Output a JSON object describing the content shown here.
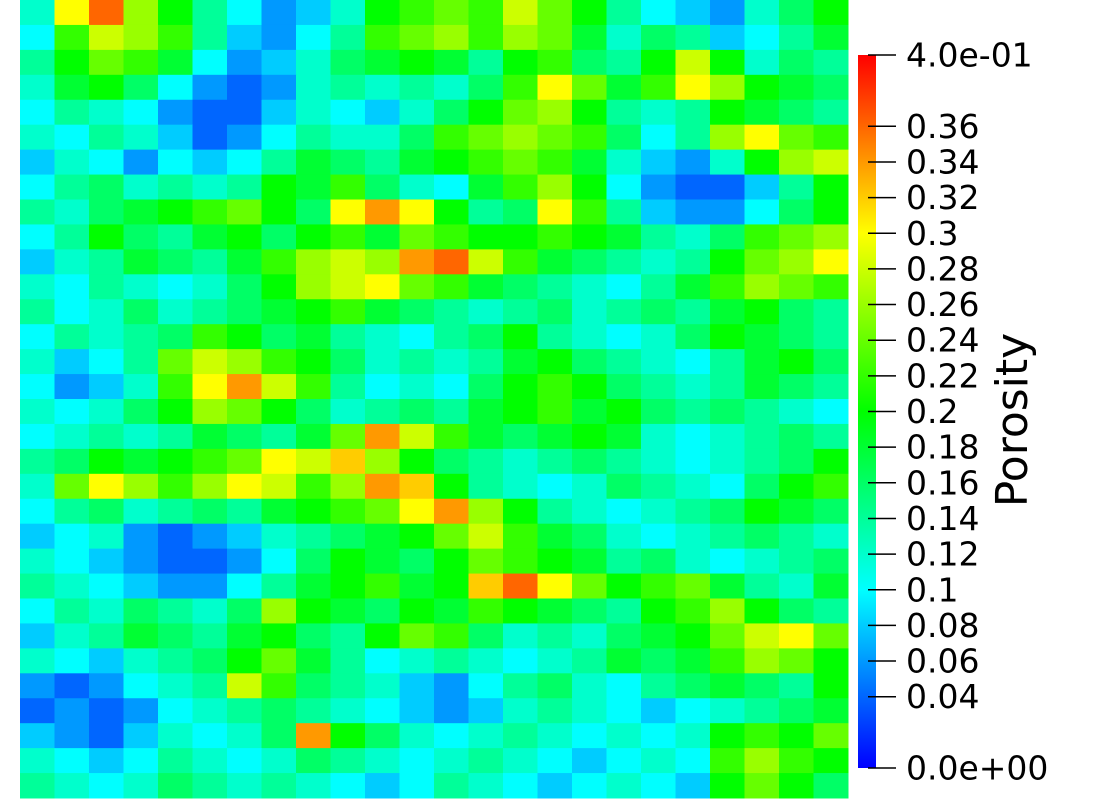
{
  "chart_data": {
    "type": "heatmap",
    "title": "Porosity",
    "zlim": [
      0,
      0.4
    ],
    "zticks": [
      {
        "value": 0,
        "label": "0.0e+00"
      },
      0.04,
      0.06,
      0.08,
      0.1,
      0.12,
      0.14,
      0.16,
      0.18,
      0.2,
      0.22,
      0.24,
      0.26,
      0.28,
      0.3,
      0.32,
      0.34,
      0.36,
      {
        "value": 0.4,
        "label": "4.0e-01"
      }
    ],
    "colormap": [
      "#0000ff",
      "#00ffff",
      "#00ff00",
      "#ffff00",
      "#ff0000"
    ],
    "values": [
      [
        0.12,
        0.3,
        0.36,
        0.26,
        0.2,
        0.14,
        0.1,
        0.06,
        0.08,
        0.12,
        0.2,
        0.22,
        0.24,
        0.22,
        0.28,
        0.24,
        0.2,
        0.14,
        0.1,
        0.08,
        0.06,
        0.12,
        0.16,
        0.2
      ],
      [
        0.1,
        0.22,
        0.28,
        0.26,
        0.22,
        0.14,
        0.08,
        0.06,
        0.1,
        0.14,
        0.22,
        0.24,
        0.26,
        0.22,
        0.26,
        0.24,
        0.18,
        0.12,
        0.16,
        0.14,
        0.08,
        0.1,
        0.14,
        0.18
      ],
      [
        0.14,
        0.2,
        0.24,
        0.22,
        0.18,
        0.1,
        0.06,
        0.08,
        0.12,
        0.16,
        0.18,
        0.2,
        0.18,
        0.14,
        0.2,
        0.22,
        0.16,
        0.14,
        0.2,
        0.28,
        0.2,
        0.12,
        0.16,
        0.14
      ],
      [
        0.12,
        0.18,
        0.2,
        0.16,
        0.1,
        0.06,
        0.04,
        0.06,
        0.12,
        0.14,
        0.12,
        0.14,
        0.12,
        0.16,
        0.22,
        0.3,
        0.24,
        0.18,
        0.22,
        0.3,
        0.26,
        0.2,
        0.18,
        0.16
      ],
      [
        0.1,
        0.14,
        0.12,
        0.1,
        0.06,
        0.04,
        0.04,
        0.08,
        0.12,
        0.1,
        0.08,
        0.12,
        0.16,
        0.2,
        0.24,
        0.26,
        0.2,
        0.14,
        0.12,
        0.14,
        0.2,
        0.18,
        0.16,
        0.14
      ],
      [
        0.12,
        0.1,
        0.14,
        0.12,
        0.08,
        0.04,
        0.06,
        0.1,
        0.14,
        0.12,
        0.12,
        0.16,
        0.22,
        0.24,
        0.26,
        0.24,
        0.22,
        0.16,
        0.1,
        0.14,
        0.26,
        0.3,
        0.24,
        0.22
      ],
      [
        0.08,
        0.12,
        0.1,
        0.06,
        0.1,
        0.08,
        0.1,
        0.14,
        0.18,
        0.16,
        0.14,
        0.18,
        0.2,
        0.22,
        0.24,
        0.22,
        0.18,
        0.12,
        0.08,
        0.06,
        0.12,
        0.2,
        0.26,
        0.28
      ],
      [
        0.1,
        0.14,
        0.16,
        0.12,
        0.14,
        0.12,
        0.14,
        0.2,
        0.18,
        0.22,
        0.16,
        0.12,
        0.1,
        0.18,
        0.22,
        0.26,
        0.2,
        0.1,
        0.06,
        0.04,
        0.04,
        0.08,
        0.14,
        0.2
      ],
      [
        0.14,
        0.12,
        0.16,
        0.18,
        0.2,
        0.22,
        0.24,
        0.2,
        0.16,
        0.3,
        0.34,
        0.3,
        0.2,
        0.14,
        0.16,
        0.3,
        0.22,
        0.14,
        0.08,
        0.06,
        0.06,
        0.1,
        0.16,
        0.2
      ],
      [
        0.1,
        0.14,
        0.2,
        0.16,
        0.14,
        0.18,
        0.2,
        0.16,
        0.2,
        0.22,
        0.18,
        0.24,
        0.22,
        0.2,
        0.2,
        0.22,
        0.2,
        0.18,
        0.14,
        0.12,
        0.16,
        0.22,
        0.24,
        0.26
      ],
      [
        0.08,
        0.12,
        0.14,
        0.18,
        0.16,
        0.14,
        0.18,
        0.22,
        0.26,
        0.28,
        0.26,
        0.34,
        0.36,
        0.28,
        0.22,
        0.18,
        0.16,
        0.14,
        0.12,
        0.14,
        0.2,
        0.24,
        0.26,
        0.3
      ],
      [
        0.12,
        0.1,
        0.14,
        0.12,
        0.1,
        0.12,
        0.16,
        0.2,
        0.26,
        0.28,
        0.3,
        0.24,
        0.22,
        0.18,
        0.16,
        0.14,
        0.12,
        0.1,
        0.14,
        0.18,
        0.22,
        0.26,
        0.24,
        0.22
      ],
      [
        0.14,
        0.1,
        0.12,
        0.16,
        0.12,
        0.14,
        0.16,
        0.18,
        0.2,
        0.22,
        0.18,
        0.16,
        0.14,
        0.12,
        0.14,
        0.16,
        0.12,
        0.14,
        0.16,
        0.14,
        0.18,
        0.2,
        0.16,
        0.14
      ],
      [
        0.1,
        0.14,
        0.12,
        0.14,
        0.16,
        0.22,
        0.2,
        0.16,
        0.18,
        0.14,
        0.12,
        0.1,
        0.14,
        0.16,
        0.2,
        0.14,
        0.12,
        0.1,
        0.12,
        0.16,
        0.2,
        0.18,
        0.16,
        0.14
      ],
      [
        0.12,
        0.08,
        0.1,
        0.14,
        0.24,
        0.28,
        0.26,
        0.22,
        0.2,
        0.16,
        0.12,
        0.14,
        0.12,
        0.14,
        0.18,
        0.2,
        0.16,
        0.14,
        0.12,
        0.1,
        0.14,
        0.18,
        0.2,
        0.16
      ],
      [
        0.1,
        0.06,
        0.08,
        0.12,
        0.22,
        0.3,
        0.34,
        0.28,
        0.22,
        0.14,
        0.1,
        0.12,
        0.1,
        0.16,
        0.2,
        0.22,
        0.2,
        0.16,
        0.14,
        0.12,
        0.14,
        0.18,
        0.16,
        0.14
      ],
      [
        0.12,
        0.1,
        0.12,
        0.16,
        0.2,
        0.26,
        0.24,
        0.2,
        0.16,
        0.12,
        0.14,
        0.16,
        0.14,
        0.18,
        0.2,
        0.22,
        0.18,
        0.2,
        0.16,
        0.14,
        0.16,
        0.14,
        0.12,
        0.1
      ],
      [
        0.1,
        0.12,
        0.14,
        0.12,
        0.14,
        0.18,
        0.16,
        0.14,
        0.18,
        0.24,
        0.34,
        0.28,
        0.22,
        0.18,
        0.16,
        0.18,
        0.2,
        0.18,
        0.12,
        0.1,
        0.12,
        0.14,
        0.16,
        0.14
      ],
      [
        0.14,
        0.16,
        0.2,
        0.18,
        0.2,
        0.22,
        0.24,
        0.3,
        0.28,
        0.32,
        0.26,
        0.2,
        0.16,
        0.14,
        0.12,
        0.14,
        0.16,
        0.14,
        0.12,
        0.1,
        0.12,
        0.14,
        0.16,
        0.2
      ],
      [
        0.12,
        0.24,
        0.3,
        0.26,
        0.22,
        0.26,
        0.3,
        0.28,
        0.22,
        0.26,
        0.34,
        0.32,
        0.2,
        0.14,
        0.12,
        0.1,
        0.12,
        0.16,
        0.14,
        0.12,
        0.1,
        0.16,
        0.2,
        0.22
      ],
      [
        0.1,
        0.14,
        0.16,
        0.12,
        0.14,
        0.16,
        0.14,
        0.18,
        0.2,
        0.22,
        0.24,
        0.3,
        0.34,
        0.26,
        0.2,
        0.14,
        0.12,
        0.1,
        0.12,
        0.14,
        0.16,
        0.2,
        0.18,
        0.16
      ],
      [
        0.08,
        0.1,
        0.12,
        0.06,
        0.04,
        0.06,
        0.08,
        0.12,
        0.14,
        0.16,
        0.18,
        0.2,
        0.24,
        0.28,
        0.22,
        0.18,
        0.16,
        0.12,
        0.1,
        0.12,
        0.14,
        0.16,
        0.14,
        0.12
      ],
      [
        0.12,
        0.1,
        0.08,
        0.06,
        0.04,
        0.04,
        0.06,
        0.1,
        0.16,
        0.2,
        0.18,
        0.16,
        0.2,
        0.24,
        0.22,
        0.2,
        0.18,
        0.14,
        0.16,
        0.12,
        0.1,
        0.12,
        0.14,
        0.16
      ],
      [
        0.14,
        0.12,
        0.1,
        0.08,
        0.06,
        0.06,
        0.1,
        0.14,
        0.18,
        0.2,
        0.22,
        0.18,
        0.2,
        0.32,
        0.36,
        0.3,
        0.24,
        0.2,
        0.22,
        0.24,
        0.18,
        0.14,
        0.12,
        0.18
      ],
      [
        0.1,
        0.14,
        0.12,
        0.16,
        0.14,
        0.12,
        0.16,
        0.26,
        0.2,
        0.18,
        0.16,
        0.2,
        0.18,
        0.22,
        0.2,
        0.18,
        0.16,
        0.14,
        0.2,
        0.22,
        0.26,
        0.2,
        0.16,
        0.14
      ],
      [
        0.08,
        0.12,
        0.14,
        0.18,
        0.16,
        0.14,
        0.18,
        0.2,
        0.16,
        0.14,
        0.2,
        0.24,
        0.22,
        0.16,
        0.12,
        0.14,
        0.12,
        0.16,
        0.18,
        0.2,
        0.24,
        0.28,
        0.3,
        0.24
      ],
      [
        0.12,
        0.1,
        0.08,
        0.12,
        0.14,
        0.16,
        0.2,
        0.24,
        0.18,
        0.14,
        0.1,
        0.12,
        0.14,
        0.12,
        0.1,
        0.12,
        0.14,
        0.18,
        0.16,
        0.18,
        0.22,
        0.26,
        0.24,
        0.2
      ],
      [
        0.06,
        0.04,
        0.06,
        0.1,
        0.12,
        0.14,
        0.28,
        0.22,
        0.16,
        0.14,
        0.12,
        0.08,
        0.06,
        0.1,
        0.14,
        0.16,
        0.12,
        0.1,
        0.14,
        0.16,
        0.18,
        0.16,
        0.14,
        0.2
      ],
      [
        0.04,
        0.06,
        0.04,
        0.06,
        0.1,
        0.12,
        0.14,
        0.16,
        0.14,
        0.12,
        0.1,
        0.08,
        0.06,
        0.08,
        0.12,
        0.14,
        0.12,
        0.1,
        0.08,
        0.1,
        0.12,
        0.14,
        0.16,
        0.18
      ],
      [
        0.08,
        0.06,
        0.04,
        0.08,
        0.12,
        0.1,
        0.12,
        0.16,
        0.34,
        0.2,
        0.16,
        0.12,
        0.1,
        0.12,
        0.14,
        0.12,
        0.1,
        0.12,
        0.1,
        0.12,
        0.2,
        0.22,
        0.2,
        0.24
      ],
      [
        0.12,
        0.1,
        0.08,
        0.1,
        0.14,
        0.12,
        0.1,
        0.12,
        0.16,
        0.14,
        0.12,
        0.1,
        0.12,
        0.14,
        0.12,
        0.1,
        0.08,
        0.1,
        0.12,
        0.1,
        0.22,
        0.26,
        0.22,
        0.2
      ],
      [
        0.14,
        0.12,
        0.1,
        0.12,
        0.16,
        0.14,
        0.12,
        0.14,
        0.12,
        0.1,
        0.08,
        0.1,
        0.14,
        0.12,
        0.1,
        0.08,
        0.1,
        0.12,
        0.1,
        0.08,
        0.2,
        0.24,
        0.2,
        0.16
      ]
    ]
  }
}
